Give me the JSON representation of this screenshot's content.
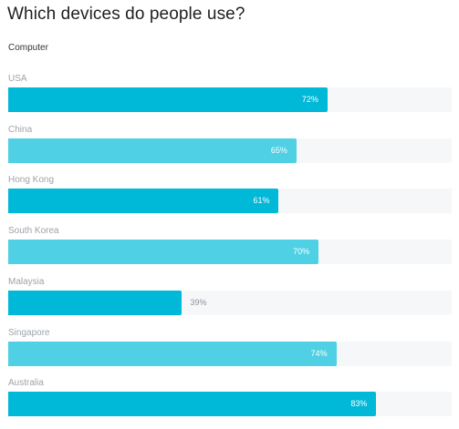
{
  "title": "Which devices do people use?",
  "subtitle": "Computer",
  "colors": {
    "dark": "#00b8d8",
    "light": "#4fd0e4",
    "track": "#f6f7f9"
  },
  "chart_data": {
    "type": "bar",
    "orientation": "horizontal",
    "title": "Which devices do people use?",
    "subtitle": "Computer",
    "categories": [
      "USA",
      "China",
      "Hong Kong",
      "South Korea",
      "Malaysia",
      "Singapore",
      "Australia"
    ],
    "values": [
      72,
      65,
      61,
      70,
      39,
      74,
      83
    ],
    "labels": [
      "72%",
      "65%",
      "61%",
      "70%",
      "39%",
      "74%",
      "83%"
    ],
    "xlim": [
      0,
      100
    ],
    "grid": false,
    "legend": "none"
  }
}
